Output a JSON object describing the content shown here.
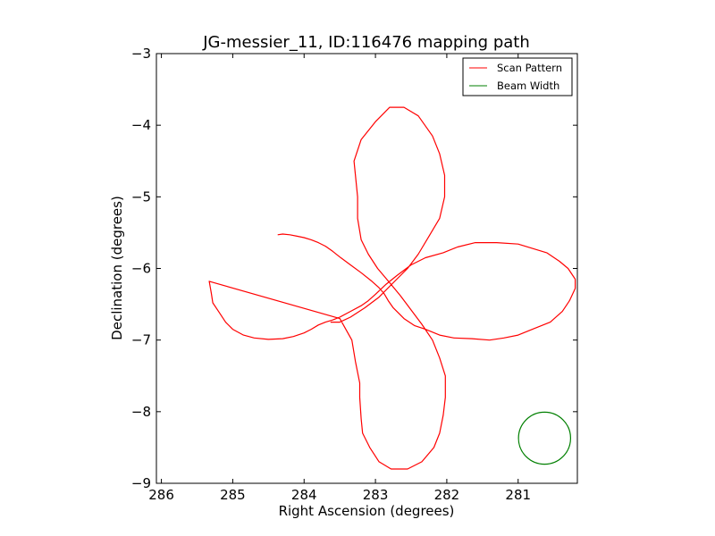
{
  "chart_data": {
    "type": "line",
    "title": "JG-messier_11, ID:116476 mapping path",
    "xlabel": "Right Ascension (degrees)",
    "ylabel": "Declination (degrees)",
    "xlim": [
      286.07,
      280.17
    ],
    "ylim": [
      -9,
      -3
    ],
    "x_ticks": [
      286,
      285,
      284,
      283,
      282,
      281
    ],
    "x_tick_labels": [
      "286",
      "285",
      "284",
      "283",
      "282",
      "281"
    ],
    "y_ticks": [
      -3,
      -4,
      -5,
      -6,
      -7,
      -8,
      -9
    ],
    "y_tick_labels": [
      "−3",
      "−4",
      "−5",
      "−6",
      "−7",
      "−8",
      "−9"
    ],
    "legend_position": "top-right",
    "colors": {
      "scan": "#ff0000",
      "beam": "#007f00",
      "axes": "#000000"
    },
    "series": [
      {
        "name": "Scan Pattern",
        "color": "#ff0000",
        "points": [
          [
            284.37,
            -5.53
          ],
          [
            284.3,
            -5.52
          ],
          [
            284.2,
            -5.53
          ],
          [
            284.1,
            -5.55
          ],
          [
            284.0,
            -5.57
          ],
          [
            283.9,
            -5.6
          ],
          [
            283.8,
            -5.64
          ],
          [
            283.7,
            -5.69
          ],
          [
            283.6,
            -5.76
          ],
          [
            283.5,
            -5.84
          ],
          [
            283.35,
            -5.95
          ],
          [
            283.2,
            -6.06
          ],
          [
            283.05,
            -6.18
          ],
          [
            282.95,
            -6.27
          ],
          [
            282.88,
            -6.35
          ],
          [
            282.82,
            -6.45
          ],
          [
            282.75,
            -6.55
          ],
          [
            282.6,
            -6.7
          ],
          [
            282.45,
            -6.8
          ],
          [
            282.3,
            -6.85
          ],
          [
            282.1,
            -6.93
          ],
          [
            281.9,
            -6.97
          ],
          [
            281.65,
            -6.98
          ],
          [
            281.4,
            -7.0
          ],
          [
            281.2,
            -6.97
          ],
          [
            281.0,
            -6.93
          ],
          [
            280.8,
            -6.85
          ],
          [
            280.55,
            -6.75
          ],
          [
            280.38,
            -6.6
          ],
          [
            280.28,
            -6.45
          ],
          [
            280.2,
            -6.28
          ],
          [
            280.2,
            -6.15
          ],
          [
            280.3,
            -6.0
          ],
          [
            280.42,
            -5.9
          ],
          [
            280.6,
            -5.78
          ],
          [
            280.8,
            -5.72
          ],
          [
            281.0,
            -5.66
          ],
          [
            281.3,
            -5.64
          ],
          [
            281.6,
            -5.64
          ],
          [
            281.85,
            -5.7
          ],
          [
            282.05,
            -5.78
          ],
          [
            282.3,
            -5.85
          ],
          [
            282.5,
            -5.95
          ],
          [
            282.7,
            -6.1
          ],
          [
            282.85,
            -6.22
          ],
          [
            283.0,
            -6.36
          ],
          [
            283.1,
            -6.45
          ],
          [
            283.2,
            -6.52
          ],
          [
            283.35,
            -6.6
          ],
          [
            283.5,
            -6.68
          ],
          [
            283.6,
            -6.72
          ],
          [
            283.7,
            -6.75
          ],
          [
            283.8,
            -6.79
          ],
          [
            283.9,
            -6.85
          ],
          [
            284.0,
            -6.9
          ],
          [
            284.15,
            -6.95
          ],
          [
            284.3,
            -6.98
          ],
          [
            284.5,
            -6.99
          ],
          [
            284.7,
            -6.97
          ],
          [
            284.85,
            -6.93
          ],
          [
            285.0,
            -6.85
          ],
          [
            285.1,
            -6.75
          ],
          [
            285.2,
            -6.6
          ],
          [
            285.28,
            -6.48
          ],
          [
            285.3,
            -6.35
          ],
          [
            285.33,
            -6.18
          ],
          [
            283.5,
            -6.7
          ],
          [
            283.33,
            -7.0
          ],
          [
            283.28,
            -7.3
          ],
          [
            283.22,
            -7.6
          ],
          [
            283.22,
            -7.8
          ],
          [
            283.2,
            -8.1
          ],
          [
            283.18,
            -8.3
          ],
          [
            283.08,
            -8.5
          ],
          [
            282.95,
            -8.7
          ],
          [
            282.78,
            -8.8
          ],
          [
            282.55,
            -8.8
          ],
          [
            282.35,
            -8.7
          ],
          [
            282.18,
            -8.5
          ],
          [
            282.1,
            -8.3
          ],
          [
            282.05,
            -8.05
          ],
          [
            282.02,
            -7.8
          ],
          [
            282.02,
            -7.5
          ],
          [
            282.1,
            -7.25
          ],
          [
            282.2,
            -7.0
          ],
          [
            282.35,
            -6.78
          ],
          [
            282.5,
            -6.58
          ],
          [
            282.65,
            -6.38
          ],
          [
            282.8,
            -6.2
          ],
          [
            282.97,
            -6.0
          ],
          [
            283.1,
            -5.8
          ],
          [
            283.2,
            -5.6
          ],
          [
            283.25,
            -5.3
          ],
          [
            283.25,
            -5.0
          ],
          [
            283.28,
            -4.7
          ],
          [
            283.3,
            -4.5
          ],
          [
            283.2,
            -4.2
          ],
          [
            283.0,
            -3.95
          ],
          [
            282.8,
            -3.75
          ],
          [
            282.6,
            -3.75
          ],
          [
            282.4,
            -3.87
          ],
          [
            282.2,
            -4.15
          ],
          [
            282.1,
            -4.4
          ],
          [
            282.03,
            -4.7
          ],
          [
            282.03,
            -5.0
          ],
          [
            282.1,
            -5.3
          ],
          [
            282.25,
            -5.55
          ],
          [
            282.4,
            -5.8
          ],
          [
            282.55,
            -6.0
          ],
          [
            282.75,
            -6.2
          ],
          [
            282.95,
            -6.4
          ],
          [
            283.15,
            -6.55
          ],
          [
            283.35,
            -6.68
          ],
          [
            283.5,
            -6.75
          ],
          [
            283.63,
            -6.75
          ]
        ]
      },
      {
        "name": "Beam Width",
        "color": "#007f00",
        "center": [
          280.63,
          -8.37
        ],
        "radius": 0.365
      }
    ]
  }
}
